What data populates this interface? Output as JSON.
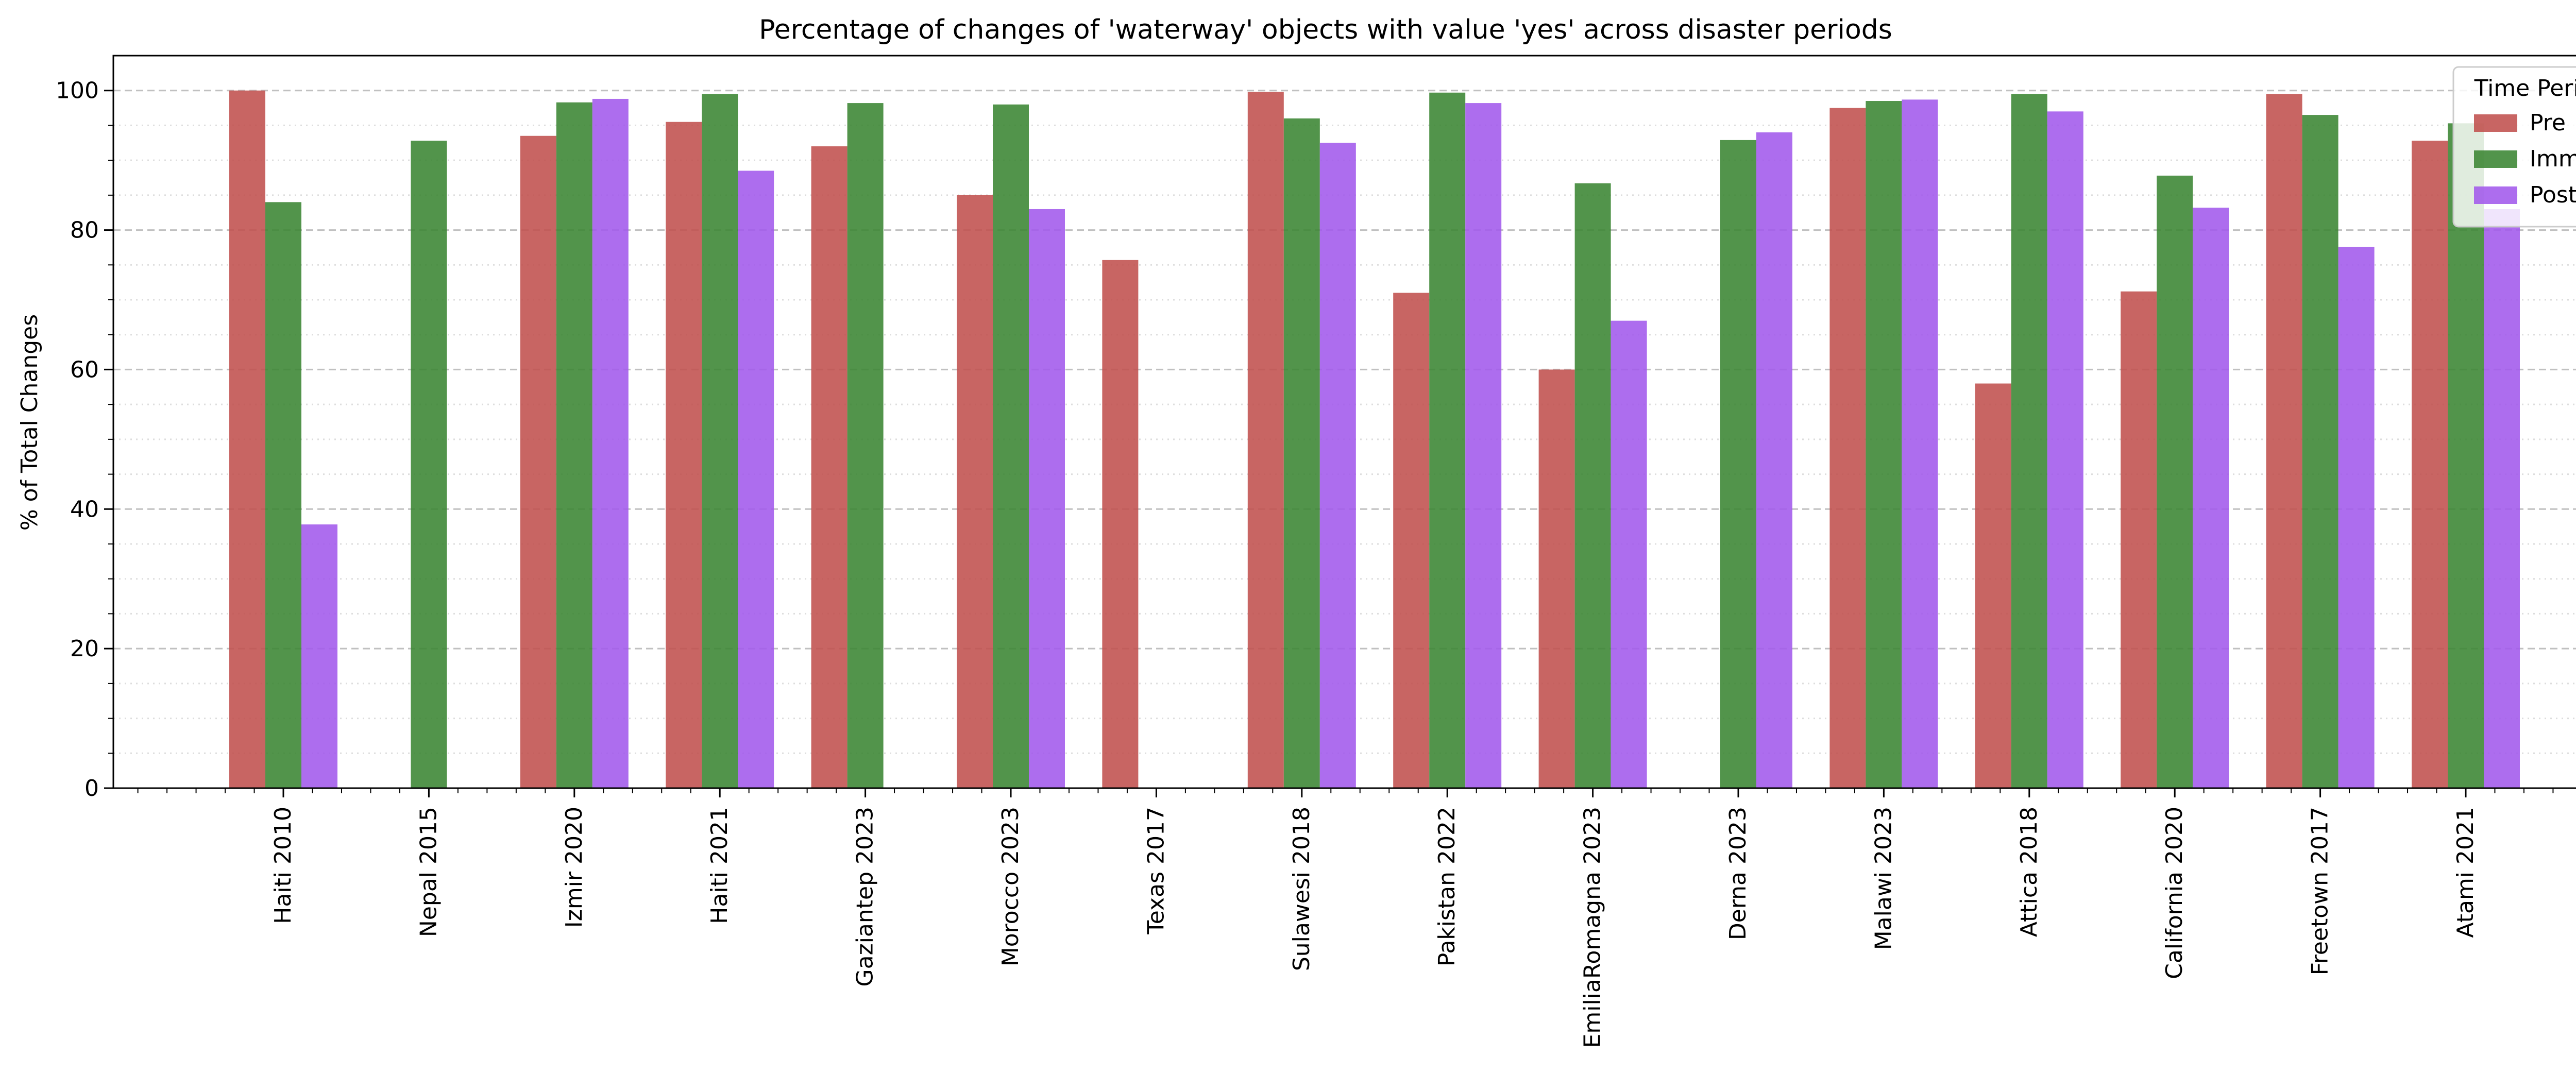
{
  "chart_data": {
    "type": "bar",
    "title": "Percentage of changes of 'waterway' objects with value 'yes' across disaster periods",
    "xlabel": "",
    "ylabel": "% of Total Changes",
    "ylim": [
      0,
      105
    ],
    "yticks": [
      0,
      20,
      40,
      60,
      80,
      100
    ],
    "grid": "major dashed, minor dotted (horizontal)",
    "legend_title": "Time Period",
    "legend_placement": "top-right",
    "categories": [
      "Haiti 2010",
      "Nepal 2015",
      "Izmir 2020",
      "Haiti 2021",
      "Gaziantep 2023",
      "Morocco 2023",
      "Texas 2017",
      "Sulawesi 2018",
      "Pakistan 2022",
      "EmiliaRomagna 2023",
      "Derna 2023",
      "Malawi 2023",
      "Attica 2018",
      "California 2020",
      "Freetown 2017",
      "Atami 2021"
    ],
    "series": [
      {
        "name": "Pre",
        "color": "#c0504d",
        "values": [
          100,
          null,
          93.5,
          95.5,
          92,
          85,
          75.7,
          99.8,
          71,
          60,
          null,
          97.5,
          58,
          71.2,
          99.5,
          92.8
        ]
      },
      {
        "name": "Imm",
        "color": "#3a8532",
        "values": [
          84,
          92.8,
          98.3,
          99.5,
          98.2,
          98,
          null,
          96,
          99.7,
          86.7,
          92.9,
          98.5,
          99.5,
          87.8,
          96.5,
          95.3
        ]
      },
      {
        "name": "Post",
        "color": "#a259ec",
        "values": [
          37.8,
          null,
          98.8,
          88.5,
          null,
          83,
          null,
          92.5,
          98.2,
          67,
          94,
          98.7,
          97,
          83.2,
          77.6,
          83
        ]
      }
    ]
  }
}
